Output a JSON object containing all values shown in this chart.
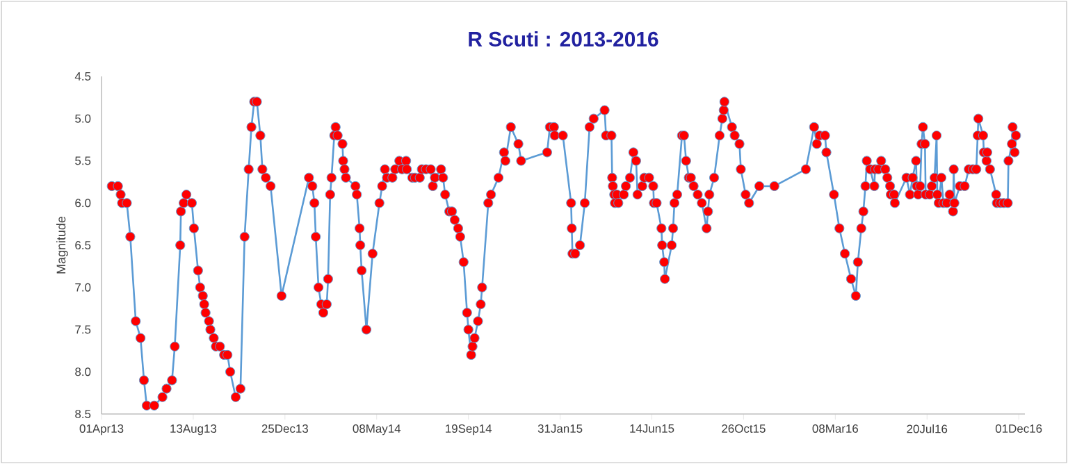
{
  "chart_data": {
    "type": "line",
    "title": "R Scuti : 2013-2016",
    "ylabel": "Magnitude",
    "xlim": [
      "2013-04-01",
      "2016-12-10"
    ],
    "ylim": [
      8.5,
      4.5
    ],
    "xticks": [
      {
        "value": "2013-04-01",
        "label": "01Apr13"
      },
      {
        "value": "2013-08-13",
        "label": "13Aug13"
      },
      {
        "value": "2013-12-25",
        "label": "25Dec13"
      },
      {
        "value": "2014-05-08",
        "label": "08May14"
      },
      {
        "value": "2014-09-19",
        "label": "19Sep14"
      },
      {
        "value": "2015-01-31",
        "label": "31Jan15"
      },
      {
        "value": "2015-06-14",
        "label": "14Jun15"
      },
      {
        "value": "2015-10-26",
        "label": "26Oct15"
      },
      {
        "value": "2016-03-08",
        "label": "08Mar16"
      },
      {
        "value": "2016-07-20",
        "label": "20Jul16"
      },
      {
        "value": "2016-12-01",
        "label": "01Dec16"
      }
    ],
    "yticks": [
      4.5,
      {
        "value": 5,
        "label": "5.0"
      },
      5.5,
      {
        "value": 6,
        "label": "6.0"
      },
      6.5,
      {
        "value": 7,
        "label": "7.0"
      },
      7.5,
      {
        "value": 8,
        "label": "8.0"
      },
      8.5
    ],
    "grid": false,
    "marker": "circle",
    "line_style": "solid",
    "series": [
      {
        "color": "#5b9bd5",
        "x": [
          "2013-04-16",
          "2013-04-25",
          "2013-04-29",
          "2013-05-01",
          "2013-05-08",
          "2013-05-13",
          "2013-05-21",
          "2013-05-28",
          "2013-06-02",
          "2013-06-06",
          "2013-06-17",
          "2013-06-29",
          "2013-07-05",
          "2013-07-13",
          "2013-07-17",
          "2013-07-25",
          "2013-07-26",
          "2013-07-30",
          "2013-08-03",
          "2013-08-11",
          "2013-08-14",
          "2013-08-20",
          "2013-08-23",
          "2013-08-27",
          "2013-08-29",
          "2013-08-31",
          "2013-09-05",
          "2013-09-07",
          "2013-09-12",
          "2013-09-15",
          "2013-09-21",
          "2013-09-27",
          "2013-10-02",
          "2013-10-06",
          "2013-10-14",
          "2013-10-21",
          "2013-10-27",
          "2013-11-02",
          "2013-11-06",
          "2013-11-10",
          "2013-11-14",
          "2013-11-19",
          "2013-11-22",
          "2013-11-27",
          "2013-12-04",
          "2013-12-20",
          "2014-01-29",
          "2014-02-03",
          "2014-02-06",
          "2014-02-08",
          "2014-02-12",
          "2014-02-16",
          "2014-02-19",
          "2014-02-24",
          "2014-02-26",
          "2014-03-01",
          "2014-03-03",
          "2014-03-07",
          "2014-03-09",
          "2014-03-12",
          "2014-03-19",
          "2014-03-20",
          "2014-03-22",
          "2014-03-24",
          "2014-04-07",
          "2014-04-09",
          "2014-04-13",
          "2014-04-14",
          "2014-04-16",
          "2014-04-23",
          "2014-05-02",
          "2014-05-12",
          "2014-05-16",
          "2014-05-20",
          "2014-05-23",
          "2014-05-31",
          "2014-06-04",
          "2014-06-10",
          "2014-06-14",
          "2014-06-20",
          "2014-06-21",
          "2014-06-29",
          "2014-07-03",
          "2014-07-10",
          "2014-07-13",
          "2014-07-19",
          "2014-07-26",
          "2014-07-29",
          "2014-08-01",
          "2014-08-10",
          "2014-08-13",
          "2014-08-16",
          "2014-08-22",
          "2014-08-26",
          "2014-08-30",
          "2014-09-04",
          "2014-09-07",
          "2014-09-12",
          "2014-09-17",
          "2014-09-19",
          "2014-09-23",
          "2014-09-25",
          "2014-09-28",
          "2014-10-03",
          "2014-10-07",
          "2014-10-09",
          "2014-10-18",
          "2014-10-22",
          "2014-11-02",
          "2014-11-10",
          "2014-11-12",
          "2014-11-20",
          "2014-12-01",
          "2014-12-05",
          "2015-01-12",
          "2015-01-16",
          "2015-01-22",
          "2015-01-23",
          "2015-02-04",
          "2015-02-16",
          "2015-02-17",
          "2015-02-18",
          "2015-02-22",
          "2015-03-01",
          "2015-03-08",
          "2015-03-15",
          "2015-03-21",
          "2015-04-06",
          "2015-04-08",
          "2015-04-16",
          "2015-04-17",
          "2015-04-18",
          "2015-04-20",
          "2015-04-21",
          "2015-04-24",
          "2015-04-26",
          "2015-05-04",
          "2015-05-07",
          "2015-05-13",
          "2015-05-18",
          "2015-05-22",
          "2015-05-24",
          "2015-05-31",
          "2015-06-03",
          "2015-06-10",
          "2015-06-16",
          "2015-06-17",
          "2015-06-21",
          "2015-06-28",
          "2015-06-29",
          "2015-07-02",
          "2015-07-03",
          "2015-07-13",
          "2015-07-15",
          "2015-07-17",
          "2015-07-21",
          "2015-07-28",
          "2015-07-31",
          "2015-08-03",
          "2015-08-07",
          "2015-08-10",
          "2015-08-14",
          "2015-08-20",
          "2015-08-26",
          "2015-09-02",
          "2015-09-04",
          "2015-09-06",
          "2015-09-13",
          "2015-09-21",
          "2015-09-25",
          "2015-09-27",
          "2015-09-28",
          "2015-10-09",
          "2015-10-13",
          "2015-10-20",
          "2015-10-22",
          "2015-10-29",
          "2015-11-03",
          "2015-11-18",
          "2015-12-10",
          "2016-01-25",
          "2016-02-06",
          "2016-02-10",
          "2016-02-14",
          "2016-02-22",
          "2016-02-24",
          "2016-03-06",
          "2016-03-14",
          "2016-03-22",
          "2016-03-31",
          "2016-04-07",
          "2016-04-10",
          "2016-04-15",
          "2016-04-18",
          "2016-04-21",
          "2016-04-23",
          "2016-04-28",
          "2016-05-04",
          "2016-05-05",
          "2016-05-10",
          "2016-05-14",
          "2016-05-20",
          "2016-05-23",
          "2016-05-27",
          "2016-05-28",
          "2016-06-02",
          "2016-06-03",
          "2016-06-20",
          "2016-06-25",
          "2016-06-29",
          "2016-07-04",
          "2016-07-05",
          "2016-07-07",
          "2016-07-10",
          "2016-07-12",
          "2016-07-14",
          "2016-07-17",
          "2016-07-18",
          "2016-07-24",
          "2016-07-27",
          "2016-07-31",
          "2016-08-03",
          "2016-08-04",
          "2016-08-06",
          "2016-08-10",
          "2016-08-13",
          "2016-08-18",
          "2016-08-22",
          "2016-08-27",
          "2016-08-28",
          "2016-08-29",
          "2016-09-06",
          "2016-09-13",
          "2016-09-19",
          "2016-09-25",
          "2016-09-30",
          "2016-10-02",
          "2016-10-03",
          "2016-10-10",
          "2016-10-11",
          "2016-10-15",
          "2016-10-16",
          "2016-10-20",
          "2016-10-29",
          "2016-10-30",
          "2016-11-04",
          "2016-11-09",
          "2016-11-15",
          "2016-11-16",
          "2016-11-21",
          "2016-11-22",
          "2016-11-25",
          "2016-11-27"
        ],
        "values": [
          5.8,
          5.8,
          5.9,
          6.0,
          6.0,
          6.4,
          7.4,
          7.6,
          8.1,
          8.4,
          8.4,
          8.3,
          8.2,
          8.1,
          7.7,
          6.5,
          6.1,
          6.0,
          5.9,
          6.0,
          6.3,
          6.8,
          7.0,
          7.1,
          7.2,
          7.3,
          7.4,
          7.5,
          7.6,
          7.7,
          7.7,
          7.8,
          7.8,
          8.0,
          8.3,
          8.2,
          6.4,
          5.6,
          5.1,
          4.8,
          4.8,
          5.2,
          5.6,
          5.7,
          5.8,
          7.1,
          5.7,
          5.8,
          6.0,
          6.4,
          7.0,
          7.2,
          7.3,
          7.2,
          6.9,
          5.9,
          5.7,
          5.2,
          5.1,
          5.2,
          5.3,
          5.5,
          5.6,
          5.7,
          5.8,
          5.9,
          6.3,
          6.5,
          6.8,
          7.5,
          6.6,
          6.0,
          5.8,
          5.6,
          5.7,
          5.7,
          5.6,
          5.5,
          5.6,
          5.5,
          5.6,
          5.7,
          5.7,
          5.7,
          5.6,
          5.6,
          5.6,
          5.8,
          5.7,
          5.6,
          5.7,
          5.9,
          6.1,
          6.1,
          6.2,
          6.3,
          6.4,
          6.7,
          7.3,
          7.5,
          7.8,
          7.7,
          7.6,
          7.4,
          7.2,
          7.0,
          6.0,
          5.9,
          5.7,
          5.4,
          5.5,
          5.1,
          5.3,
          5.5,
          5.4,
          5.1,
          5.1,
          5.2,
          5.2,
          6.0,
          6.3,
          6.6,
          6.6,
          6.5,
          6.0,
          5.1,
          5.0,
          4.9,
          5.2,
          5.2,
          5.7,
          5.8,
          5.9,
          6.0,
          5.9,
          6.0,
          5.9,
          5.8,
          5.7,
          5.4,
          5.5,
          5.9,
          5.8,
          5.7,
          5.7,
          5.8,
          6.0,
          6.0,
          6.3,
          6.5,
          6.7,
          6.9,
          6.5,
          6.3,
          6.0,
          5.9,
          5.2,
          5.2,
          5.5,
          5.7,
          5.7,
          5.8,
          5.9,
          6.0,
          6.3,
          6.1,
          5.9,
          5.7,
          5.2,
          5.0,
          4.9,
          4.8,
          5.1,
          5.2,
          5.3,
          5.6,
          5.9,
          6.0,
          5.8,
          5.8,
          5.6,
          5.1,
          5.3,
          5.2,
          5.2,
          5.4,
          5.9,
          6.3,
          6.6,
          6.9,
          7.1,
          6.7,
          6.3,
          6.1,
          5.8,
          5.5,
          5.6,
          5.8,
          5.6,
          5.6,
          5.5,
          5.6,
          5.7,
          5.8,
          5.9,
          5.9,
          6.0,
          5.7,
          5.9,
          5.7,
          5.5,
          5.8,
          5.9,
          5.8,
          5.3,
          5.1,
          5.3,
          5.9,
          5.9,
          5.8,
          5.7,
          5.2,
          5.9,
          6.0,
          5.7,
          6.0,
          6.0,
          5.9,
          6.1,
          5.6,
          6.0,
          5.8,
          5.8,
          5.6,
          5.6,
          5.6,
          5.2,
          5.0,
          5.2,
          5.4,
          5.5,
          5.4,
          5.6,
          5.9,
          6.0,
          6.0,
          6.0,
          6.0,
          5.5,
          5.3,
          5.1,
          5.4,
          5.2
        ]
      }
    ]
  }
}
